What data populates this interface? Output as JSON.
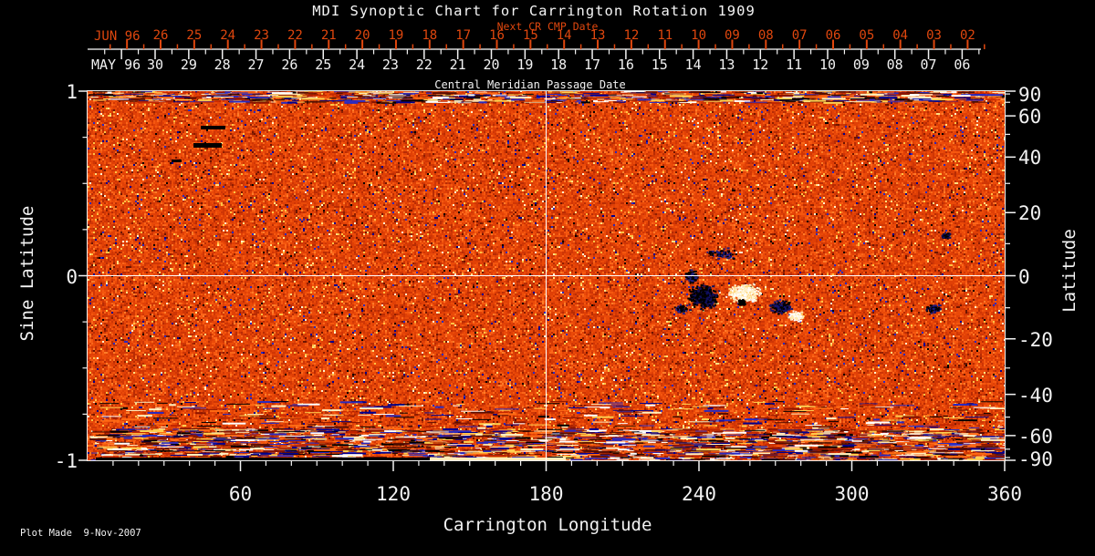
{
  "title": "MDI Synoptic Chart for Carrington Rotation 1909",
  "colors": {
    "background": "#000000",
    "foreground": "#f2f2f2",
    "accent_red": "#e0470e",
    "plot_base_orange": "#e04006",
    "grid_line": "#ffffff"
  },
  "top_axis": {
    "label": "Next CR CMP Date",
    "month": "JUN 96",
    "days": [
      "26",
      "25",
      "24",
      "23",
      "22",
      "21",
      "20",
      "19",
      "18",
      "17",
      "16",
      "15",
      "14",
      "13",
      "12",
      "11",
      "10",
      "09",
      "08",
      "07",
      "06",
      "05",
      "04",
      "03",
      "02"
    ]
  },
  "cmp_axis": {
    "label": "Central Meridian Passage Date",
    "month": "MAY 96",
    "days": [
      "30",
      "29",
      "28",
      "27",
      "26",
      "25",
      "24",
      "23",
      "22",
      "21",
      "20",
      "19",
      "18",
      "17",
      "16",
      "15",
      "14",
      "13",
      "12",
      "11",
      "10",
      "09",
      "08",
      "07",
      "06"
    ]
  },
  "x_axis": {
    "label": "Carrington Longitude",
    "major_ticks": [
      "60",
      "120",
      "180",
      "240",
      "300",
      "360"
    ]
  },
  "y_left": {
    "label": "Sine Latitude",
    "major_ticks": [
      "1",
      "0",
      "-1"
    ]
  },
  "y_right": {
    "label": "Latitude",
    "major_ticks": [
      "90",
      "60",
      "40",
      "20",
      "0",
      "-20",
      "-40",
      "-60",
      "-90"
    ]
  },
  "footer": {
    "note": "Plot Made  9-Nov-2007"
  },
  "chart_data": {
    "type": "heatmap",
    "subtype": "solar-synoptic-magnetogram",
    "title": "MDI Synoptic Chart for Carrington Rotation 1909",
    "xlabel": "Carrington Longitude",
    "x_range": [
      0,
      360
    ],
    "x_major_ticks": [
      60,
      120,
      180,
      240,
      300,
      360
    ],
    "x_minor_step_deg": 10,
    "ylabel_left": "Sine Latitude",
    "y_left_range": [
      1,
      -1
    ],
    "y_left_major_ticks": [
      1,
      0,
      -1
    ],
    "y_left_minor_ticks": [
      0.75,
      0.5,
      0.25,
      -0.25,
      -0.5,
      -0.75
    ],
    "ylabel_right": "Latitude",
    "y_right_major_ticks": [
      90,
      60,
      40,
      20,
      0,
      -20,
      -40,
      -60,
      -90
    ],
    "y_right_minor_ticks": [
      80,
      70,
      50,
      30,
      10,
      -10,
      -30,
      -50,
      -70,
      -80
    ],
    "projection": "sine-latitude",
    "grid_lines": {
      "longitude_deg": 180,
      "latitude_deg": 0
    },
    "next_cr_days": [
      "26",
      "25",
      "24",
      "23",
      "22",
      "21",
      "20",
      "19",
      "18",
      "17",
      "16",
      "15",
      "14",
      "13",
      "12",
      "11",
      "10",
      "09",
      "08",
      "07",
      "06",
      "05",
      "04",
      "03",
      "02"
    ],
    "cmp_days": [
      "30",
      "29",
      "28",
      "27",
      "26",
      "25",
      "24",
      "23",
      "22",
      "21",
      "20",
      "19",
      "18",
      "17",
      "16",
      "15",
      "14",
      "13",
      "12",
      "11",
      "10",
      "09",
      "08",
      "07",
      "06"
    ],
    "colormap_note": "orange-red background field; black = negative magnetic polarity, white/yellow = positive polarity",
    "noise_seed": 1909,
    "noise_palette": {
      "rare": [
        [
          "#000000",
          0.006
        ],
        [
          "#00008f",
          0.008
        ],
        [
          "#2a2ac0",
          0.006
        ],
        [
          "#6e1500",
          0.02
        ],
        [
          "#8f1e00",
          0.022
        ],
        [
          "#ffc244",
          0.018
        ],
        [
          "#ffe082",
          0.01
        ],
        [
          "#fff3cf",
          0.006
        ]
      ],
      "orange": [
        [
          "#b82c04",
          0.1
        ],
        [
          "#cf3605",
          0.2
        ],
        [
          "#e04006",
          0.26
        ],
        [
          "#ea4a09",
          0.22
        ],
        [
          "#f5570f",
          0.12
        ],
        [
          "#fb661a",
          0.06
        ],
        [
          "#ff7c28",
          0.04
        ]
      ]
    },
    "streak_palette": [
      "#000000",
      "#00008f",
      "#2a2ac0",
      "#8b1500",
      "#c22600",
      "#ffd050",
      "#fff0c0",
      "#ff6a14",
      "#ffffff",
      "#5a0e00"
    ],
    "edge_bands": [
      {
        "y_from": 100,
        "y_to": 112,
        "streaks": 750
      },
      {
        "y_from": 470,
        "y_to": 505,
        "streaks": 2200
      },
      {
        "y_from": 440,
        "y_to": 470,
        "streaks": 350
      }
    ],
    "features": [
      {
        "type": "bar",
        "x1": 220,
        "x2": 247,
        "y1": 138,
        "y2": 142,
        "color": "#000000"
      },
      {
        "type": "bar",
        "x1": 212,
        "x2": 243,
        "y1": 157,
        "y2": 162,
        "color": "#000000"
      },
      {
        "type": "bar",
        "x1": 188,
        "x2": 199,
        "y1": 175,
        "y2": 178,
        "color": "#000000"
      },
      {
        "type": "bar",
        "x1": 105,
        "x2": 471,
        "y1": 502,
        "y2": 505,
        "color": "#000000"
      },
      {
        "type": "bar",
        "x1": 471,
        "x2": 620,
        "y1": 502,
        "y2": 505,
        "color": "#ffedba"
      },
      {
        "type": "blob",
        "cx": 770,
        "cy": 325,
        "rx": 20,
        "ry": 16,
        "n": 520,
        "colors": [
          "#000000",
          "#000000",
          "#101060"
        ]
      },
      {
        "type": "blob",
        "cx": 757,
        "cy": 303,
        "rx": 8,
        "ry": 10,
        "n": 120,
        "colors": [
          "#000000",
          "#202080"
        ]
      },
      {
        "type": "blob",
        "cx": 815,
        "cy": 321,
        "rx": 22,
        "ry": 12,
        "n": 430,
        "colors": [
          "#ffffff",
          "#fff2cc",
          "#ffd880"
        ]
      },
      {
        "type": "blob",
        "cx": 812,
        "cy": 331,
        "rx": 6,
        "ry": 4,
        "n": 70,
        "colors": [
          "#000000"
        ]
      },
      {
        "type": "blob",
        "cx": 855,
        "cy": 336,
        "rx": 15,
        "ry": 9,
        "n": 170,
        "colors": [
          "#000000",
          "#151570"
        ]
      },
      {
        "type": "blob",
        "cx": 872,
        "cy": 346,
        "rx": 9,
        "ry": 7,
        "n": 110,
        "colors": [
          "#ffffff",
          "#ffe8b0"
        ]
      },
      {
        "type": "blob",
        "cx": 790,
        "cy": 278,
        "rx": 22,
        "ry": 9,
        "n": 70,
        "colors": [
          "#1a1a80",
          "#000000"
        ]
      },
      {
        "type": "blob",
        "cx": 745,
        "cy": 338,
        "rx": 8,
        "ry": 6,
        "n": 60,
        "colors": [
          "#000000",
          "#202090"
        ]
      },
      {
        "type": "blob",
        "cx": 1035,
        "cy": 258,
        "rx": 7,
        "ry": 4,
        "n": 60,
        "colors": [
          "#000000",
          "#101060"
        ]
      },
      {
        "type": "blob",
        "cx": 1022,
        "cy": 338,
        "rx": 11,
        "ry": 6,
        "n": 80,
        "colors": [
          "#000000",
          "#1a1a80"
        ]
      }
    ]
  }
}
